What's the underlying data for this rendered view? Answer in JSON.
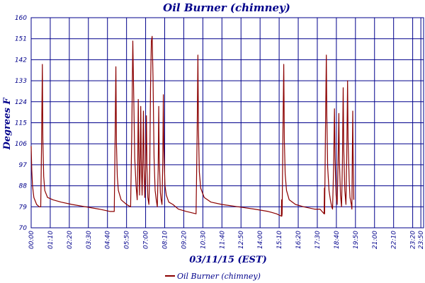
{
  "chart_data": {
    "type": "line",
    "title": "Oil Burner (chimney)",
    "xlabel": "03/11/15 (EST)",
    "ylabel": "Degrees F",
    "ylim": [
      70,
      160
    ],
    "yticks": [
      "70",
      "79",
      "88",
      "97",
      "106",
      "115",
      "124",
      "133",
      "142",
      "151",
      "160"
    ],
    "xlim": [
      0,
      1440
    ],
    "xticks": [
      {
        "t": 0,
        "label": "00:00"
      },
      {
        "t": 70,
        "label": "01:10"
      },
      {
        "t": 140,
        "label": "02:20"
      },
      {
        "t": 210,
        "label": "03:30"
      },
      {
        "t": 280,
        "label": "04:40"
      },
      {
        "t": 350,
        "label": "05:50"
      },
      {
        "t": 420,
        "label": "07:00"
      },
      {
        "t": 490,
        "label": "08:10"
      },
      {
        "t": 560,
        "label": "09:20"
      },
      {
        "t": 630,
        "label": "10:30"
      },
      {
        "t": 700,
        "label": "11:40"
      },
      {
        "t": 770,
        "label": "12:50"
      },
      {
        "t": 840,
        "label": "14:00"
      },
      {
        "t": 910,
        "label": "15:10"
      },
      {
        "t": 980,
        "label": "16:20"
      },
      {
        "t": 1050,
        "label": "17:30"
      },
      {
        "t": 1120,
        "label": "18:40"
      },
      {
        "t": 1190,
        "label": "19:50"
      },
      {
        "t": 1260,
        "label": "21:00"
      },
      {
        "t": 1330,
        "label": "22:10"
      },
      {
        "t": 1400,
        "label": "23:20"
      },
      {
        "t": 1430,
        "label": "23:50"
      }
    ],
    "grid": true,
    "legend": "bottom-center",
    "series": [
      {
        "name": "Oil Burner (chimney)",
        "color": "#8b0000",
        "points": [
          [
            0,
            105
          ],
          [
            2,
            95
          ],
          [
            5,
            88
          ],
          [
            10,
            83
          ],
          [
            20,
            80
          ],
          [
            30,
            79
          ],
          [
            35,
            79
          ],
          [
            38,
            104
          ],
          [
            41,
            140
          ],
          [
            43,
            108
          ],
          [
            46,
            92
          ],
          [
            50,
            86
          ],
          [
            60,
            83
          ],
          [
            80,
            82
          ],
          [
            110,
            81
          ],
          [
            150,
            80
          ],
          [
            200,
            79
          ],
          [
            250,
            78
          ],
          [
            290,
            77
          ],
          [
            305,
            77
          ],
          [
            308,
            108
          ],
          [
            311,
            139
          ],
          [
            313,
            106
          ],
          [
            316,
            92
          ],
          [
            320,
            86
          ],
          [
            330,
            82
          ],
          [
            350,
            80
          ],
          [
            365,
            79
          ],
          [
            369,
            110
          ],
          [
            373,
            150
          ],
          [
            376,
            128
          ],
          [
            380,
            100
          ],
          [
            385,
            88
          ],
          [
            389,
            82
          ],
          [
            391,
            95
          ],
          [
            393,
            125
          ],
          [
            395,
            104
          ],
          [
            398,
            84
          ],
          [
            400,
            96
          ],
          [
            402,
            122
          ],
          [
            404,
            100
          ],
          [
            407,
            84
          ],
          [
            409,
            95
          ],
          [
            412,
            120
          ],
          [
            414,
            98
          ],
          [
            417,
            83
          ],
          [
            420,
            95
          ],
          [
            423,
            118
          ],
          [
            425,
            96
          ],
          [
            428,
            83
          ],
          [
            432,
            80
          ],
          [
            435,
            95
          ],
          [
            438,
            130
          ],
          [
            441,
            150
          ],
          [
            444,
            152
          ],
          [
            447,
            135
          ],
          [
            451,
            100
          ],
          [
            455,
            86
          ],
          [
            459,
            82
          ],
          [
            463,
            79
          ],
          [
            466,
            95
          ],
          [
            468,
            122
          ],
          [
            470,
            100
          ],
          [
            474,
            85
          ],
          [
            477,
            82
          ],
          [
            480,
            80
          ],
          [
            483,
            98
          ],
          [
            485,
            127
          ],
          [
            487,
            104
          ],
          [
            491,
            88
          ],
          [
            496,
            84
          ],
          [
            505,
            81
          ],
          [
            520,
            80
          ],
          [
            540,
            78
          ],
          [
            570,
            77
          ],
          [
            605,
            76
          ],
          [
            609,
            110
          ],
          [
            612,
            144
          ],
          [
            614,
            112
          ],
          [
            617,
            94
          ],
          [
            622,
            87
          ],
          [
            635,
            83
          ],
          [
            660,
            81
          ],
          [
            700,
            80
          ],
          [
            760,
            79
          ],
          [
            820,
            78
          ],
          [
            870,
            77
          ],
          [
            900,
            76
          ],
          [
            918,
            75
          ],
          [
            919,
            82
          ],
          [
            920,
            75
          ],
          [
            921,
            76
          ],
          [
            924,
            112
          ],
          [
            927,
            140
          ],
          [
            929,
            108
          ],
          [
            932,
            93
          ],
          [
            937,
            86
          ],
          [
            947,
            82
          ],
          [
            970,
            80
          ],
          [
            1000,
            79
          ],
          [
            1040,
            78
          ],
          [
            1060,
            78
          ],
          [
            1075,
            76
          ],
          [
            1076,
            87
          ],
          [
            1077,
            76
          ],
          [
            1080,
            112
          ],
          [
            1083,
            144
          ],
          [
            1085,
            118
          ],
          [
            1088,
            96
          ],
          [
            1093,
            86
          ],
          [
            1098,
            82
          ],
          [
            1103,
            79
          ],
          [
            1106,
            78
          ],
          [
            1110,
            96
          ],
          [
            1113,
            121
          ],
          [
            1115,
            100
          ],
          [
            1119,
            84
          ],
          [
            1123,
            80
          ],
          [
            1126,
            96
          ],
          [
            1129,
            119
          ],
          [
            1131,
            99
          ],
          [
            1135,
            84
          ],
          [
            1139,
            79
          ],
          [
            1142,
            98
          ],
          [
            1145,
            130
          ],
          [
            1147,
            104
          ],
          [
            1151,
            86
          ],
          [
            1155,
            80
          ],
          [
            1158,
            100
          ],
          [
            1161,
            133
          ],
          [
            1163,
            108
          ],
          [
            1167,
            90
          ],
          [
            1170,
            83
          ],
          [
            1175,
            80
          ],
          [
            1177,
            78
          ],
          [
            1178,
            95
          ],
          [
            1180,
            120
          ],
          [
            1182,
            95
          ],
          [
            1184,
            82
          ]
        ]
      }
    ]
  }
}
